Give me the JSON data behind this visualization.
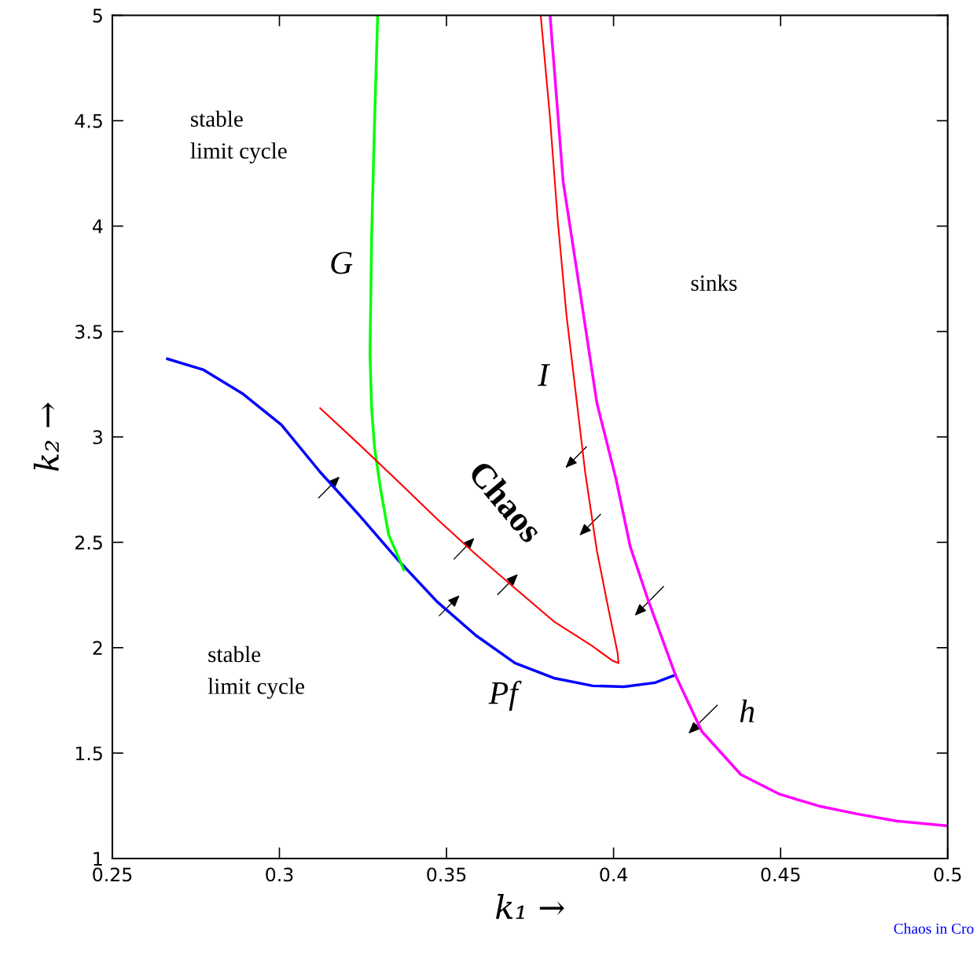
{
  "chart_data": {
    "type": "line",
    "xlabel": "k₁ →",
    "ylabel": "k₂ →",
    "xlim": [
      0.25,
      0.5
    ],
    "ylim": [
      1,
      5
    ],
    "xticks": [
      0.25,
      0.3,
      0.35,
      0.4,
      0.45,
      0.5
    ],
    "yticks": [
      1,
      1.5,
      2,
      2.5,
      3,
      3.5,
      4,
      4.5,
      5
    ],
    "grid": false,
    "legend": false,
    "marker": "none",
    "line_style": "solid",
    "series": [
      {
        "color": "#0000ff",
        "x": [
          0.2665,
          0.2773,
          0.2889,
          0.3006,
          0.3122,
          0.3239,
          0.3355,
          0.3472,
          0.3588,
          0.3705,
          0.3821,
          0.3938,
          0.4031,
          0.4124,
          0.4185
        ],
        "values": [
          3.37,
          3.318,
          3.206,
          3.057,
          2.833,
          2.628,
          2.416,
          2.218,
          2.058,
          1.927,
          1.856,
          1.819,
          1.815,
          1.834,
          1.871
        ]
      },
      {
        "color": "#00ff00",
        "x": [
          0.3294,
          0.3285,
          0.3276,
          0.3271,
          0.3276,
          0.3285,
          0.3302,
          0.3327,
          0.3372
        ],
        "values": [
          5,
          4.511,
          3.952,
          3.393,
          3.132,
          2.945,
          2.759,
          2.535,
          2.371
        ]
      },
      {
        "color": "#ff0000",
        "x": [
          0.3122,
          0.3239,
          0.3355,
          0.3472,
          0.3588,
          0.3705,
          0.3821,
          0.3938,
          0.3996,
          0.4015,
          0.4012,
          0.3985,
          0.395,
          0.3915,
          0.3887,
          0.3859,
          0.3833,
          0.381,
          0.3782
        ],
        "values": [
          3.136,
          2.964,
          2.789,
          2.61,
          2.442,
          2.282,
          2.125,
          2.006,
          1.939,
          1.927,
          1.976,
          2.181,
          2.461,
          2.833,
          3.206,
          3.579,
          4.026,
          4.511,
          5
        ]
      },
      {
        "color": "#ff00ff",
        "x": [
          0.381,
          0.3849,
          0.3903,
          0.395,
          0.4008,
          0.405,
          0.4101,
          0.4185,
          0.4264,
          0.4381,
          0.4497,
          0.4614,
          0.473,
          0.4846,
          0.5
        ],
        "values": [
          5,
          4.213,
          3.654,
          3.162,
          2.796,
          2.479,
          2.237,
          1.871,
          1.603,
          1.398,
          1.305,
          1.249,
          1.211,
          1.178,
          1.155
        ]
      }
    ],
    "annotations": [
      "stable\nlimit cycle",
      "stable\nlimit cycle",
      "sinks",
      "G",
      "I",
      "Chaos",
      "Pf",
      "h",
      "Chaos in Cro"
    ]
  }
}
